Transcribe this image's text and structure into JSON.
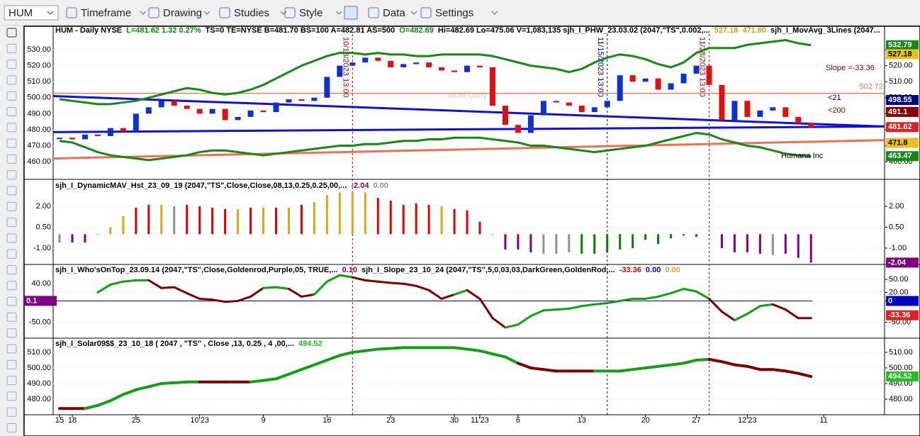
{
  "toolbar": {
    "symbol": "HUM",
    "items": [
      "Timeframe",
      "Drawing",
      "Studies",
      "Style",
      "Data",
      "Settings"
    ]
  },
  "dates": [
    "15",
    "18",
    null,
    null,
    null,
    null,
    "25",
    null,
    null,
    null,
    null,
    "10'23",
    null,
    null,
    null,
    null,
    "9",
    null,
    null,
    null,
    null,
    "16",
    null,
    null,
    null,
    null,
    "23",
    null,
    null,
    null,
    null,
    "30",
    null,
    "11'23",
    null,
    null,
    "6",
    null,
    null,
    null,
    null,
    "13",
    null,
    null,
    null,
    null,
    "20",
    null,
    null,
    null,
    "27",
    null,
    null,
    null,
    "12'23",
    null,
    null,
    null,
    null,
    null,
    "11"
  ],
  "markers": [
    {
      "index": 23,
      "label": "10/18/2023 13:00",
      "color": "#c00000"
    },
    {
      "index": 43,
      "label": "11/15/2023 13:00",
      "color": "#000080"
    },
    {
      "index": 51,
      "label": "11/28/2023 13:00",
      "color": "#c00000"
    }
  ],
  "main": {
    "header": [
      {
        "text": "HUM - Daily  NYSE",
        "color": "#000000"
      },
      {
        "text": "L=481.62  1.32  0.27%",
        "color": "#0a8a0a"
      },
      {
        "text": "TS=0  TE=NYSE  B=481.70  BS=100  A=482.81  AS=500",
        "color": "#000000"
      },
      {
        "text": "O=482.69",
        "color": "#0a8a0a"
      },
      {
        "text": "Hi=482.69  Lo=475.06  V=1,083,135  sjh_I_PHW_23.03.02 (2047,\"TS\",0.002,...",
        "color": "#000000"
      },
      {
        "text": "527.18",
        "color": "#d4a017"
      },
      {
        "text": "471.80",
        "color": "#d4a017"
      },
      {
        "text": "sjh_I_MovAvg_3Lines (2047...",
        "color": "#000000"
      }
    ],
    "watermark": "HUM Daily",
    "company": "Humana Inc",
    "slope_note": "Slope =-33.36",
    "ma_labels": [
      {
        "text": "<21",
        "color": "#000080"
      },
      {
        "text": "<200",
        "color": "#8b0000"
      }
    ],
    "ylim": [
      450.3,
      544.2
    ],
    "yticks": [
      {
        "value": 530,
        "label": "530.00"
      },
      {
        "value": 520,
        "label": "520.00"
      },
      {
        "value": 510,
        "label": "510.00"
      },
      {
        "value": 500,
        "label": "500.00"
      },
      {
        "value": 490,
        "label": "490.00"
      },
      {
        "value": 480,
        "label": "480.00"
      },
      {
        "value": 470,
        "label": "470.00"
      },
      {
        "value": 460,
        "label": "460.00"
      }
    ],
    "close": [
      475,
      474,
      477,
      476,
      481,
      479,
      490,
      494,
      498,
      495,
      493,
      490,
      493,
      486,
      488,
      492,
      491,
      497,
      499,
      498,
      500,
      513,
      520,
      522,
      525,
      523,
      519,
      521,
      522,
      519,
      517,
      516,
      520,
      519,
      495,
      483,
      478,
      489,
      498,
      497,
      495,
      491,
      494,
      498,
      514,
      510,
      512,
      505,
      509,
      515,
      520,
      508,
      486,
      498,
      488,
      492,
      494,
      488,
      484,
      481.62,
      null
    ],
    "upper": [
      499,
      498,
      497,
      496,
      496,
      497,
      498,
      500,
      502,
      504,
      506,
      505,
      503,
      502,
      503,
      505,
      508,
      512,
      516,
      520,
      523,
      526,
      528,
      528,
      527,
      528,
      527,
      527,
      526,
      526,
      527,
      527,
      527,
      527,
      526,
      524,
      522,
      520,
      519,
      518,
      516,
      518,
      522,
      525,
      527,
      526,
      524,
      521,
      519,
      522,
      528,
      531,
      531,
      531,
      533,
      534,
      535,
      536,
      534,
      532.79,
      null
    ],
    "lower": [
      473,
      472,
      469,
      466,
      464,
      463,
      462,
      461,
      462,
      463,
      464,
      466,
      467,
      467,
      466,
      465,
      464,
      465,
      466,
      467,
      468,
      469,
      470,
      470,
      471,
      471,
      472,
      473,
      473,
      474,
      474,
      475,
      475,
      475,
      474,
      473,
      472,
      470,
      470,
      469,
      468,
      467,
      466,
      467,
      468,
      469,
      470,
      472,
      474,
      476,
      478,
      477,
      474,
      472,
      470,
      469,
      467,
      465,
      464,
      463.47,
      null
    ],
    "band_color": "#138a13",
    "trendlines": [
      {
        "color": "#1010e0",
        "values": [
          501,
          482
        ]
      },
      {
        "color": "#1010e0",
        "values": [
          478.5,
          482
        ]
      },
      {
        "color": "#f07050",
        "values": [
          462,
          473.5
        ]
      }
    ],
    "level": {
      "value": 502.72,
      "color": "#f08060"
    },
    "price_boxes": [
      {
        "value": 532.79,
        "color": "#138a13"
      },
      {
        "value": 527.18,
        "color": "#e8c020"
      },
      {
        "value": 498.55,
        "color": "#000080"
      },
      {
        "value": 491.1,
        "color": "#8b0000"
      },
      {
        "value": 481.62,
        "color": "#e02020"
      },
      {
        "value": 471.8,
        "color": "#e8c020"
      },
      {
        "value": 463.47,
        "color": "#138a13"
      }
    ]
  },
  "dmav": {
    "header": [
      {
        "text": "sjh_I_DynamicMAV_Hst_23_09_19 (2047,\"TS\",Close,Close,08,13,0.25,0.25,00,...",
        "color": "#000000"
      },
      {
        "text": "-2.04",
        "color": "#800080"
      },
      {
        "text": "0.00",
        "color": "#909090"
      }
    ],
    "ylim": [
      -2.12,
      3.78
    ],
    "yticks": [
      {
        "value": 2,
        "label": "2.00"
      },
      {
        "value": 0.5,
        "label": "0.50"
      },
      {
        "value": -1,
        "label": "-1.00"
      }
    ],
    "values": [
      -0.6,
      -0.6,
      -0.6,
      0,
      0.5,
      1.3,
      1.9,
      2.1,
      2.1,
      2.0,
      2.1,
      2.0,
      1.9,
      1.8,
      1.8,
      1.9,
      1.9,
      1.9,
      1.9,
      2.1,
      2.3,
      2.8,
      3.0,
      3.0,
      3.0,
      2.6,
      2.4,
      2.1,
      2.2,
      2.1,
      2.0,
      1.8,
      1.7,
      0.9,
      -0.05,
      -1.1,
      -1.1,
      -1.3,
      -1.4,
      -1.4,
      -1.3,
      -1.4,
      -1.4,
      -1.3,
      -1.1,
      -1.0,
      -0.4,
      -0.7,
      -0.3,
      -0.1,
      -0.2,
      -0.1,
      -1.0,
      -1.3,
      -1.3,
      -1.4,
      -1.5,
      -1.4,
      -1.7,
      -2.04,
      null
    ],
    "colors": [
      "#909090",
      "#800080",
      "#800080",
      "#909090",
      "#daa520",
      "#daa520",
      "#e00000",
      "#e00000",
      "#daa520",
      "#909090",
      "#e00000",
      "#e00000",
      "#e00000",
      "#e00000",
      "#daa520",
      "#e00000",
      "#daa520",
      "#e00000",
      "#daa520",
      "#e00000",
      "#daa520",
      "#daa520",
      "#daa520",
      "#daa520",
      "#daa520",
      "#e00000",
      "#e00000",
      "#e00000",
      "#e00000",
      "#e00000",
      "#daa520",
      "#e00000",
      "#e00000",
      "#e00000",
      "#909090",
      "#800080",
      "#800080",
      "#800080",
      "#909090",
      "#909090",
      "#909090",
      "#008000",
      "#008000",
      "#008000",
      "#008000",
      "#008000",
      "#008000",
      "#008000",
      "#008000",
      "#008000",
      "#008000",
      "#909090",
      "#800080",
      "#800080",
      "#800080",
      "#800080",
      "#909090",
      "#800080",
      "#800080",
      "#800080",
      null
    ],
    "box": {
      "value": -2.04,
      "color": "#800080"
    }
  },
  "wot": {
    "header": [
      {
        "text": "sjh_I_Who'sOnTop_23.09.14 (2047,\"TS\",Close,Goldenrod,Purple,05,  TRUE,...",
        "color": "#000000"
      },
      {
        "text": "0.10",
        "color": "#800080"
      },
      {
        "text": "sjh_I_Slope_23_10_24 (2047,\"TS\",5,0,03,03,DarkGreen,GoldenRod,...",
        "color": "#000000"
      },
      {
        "text": "-33.36",
        "color": "#e00000"
      },
      {
        "text": "0.00",
        "color": "#0000e0"
      },
      {
        "text": "0.00",
        "color": "#daa520"
      }
    ],
    "ylim": [
      -85,
      80
    ],
    "yticks": [
      {
        "value": 50,
        "label": "50.00"
      },
      {
        "value": 20,
        "label": "20.00"
      },
      {
        "value": 0,
        "label": "0.00"
      },
      {
        "value": -50,
        "label": "-50.00"
      }
    ],
    "left_yticks": [
      {
        "value": 40,
        "label": "40.00"
      },
      {
        "value": 0,
        "label": "0.00"
      },
      {
        "value": -50,
        "label": "-50.00"
      }
    ],
    "values": [
      null,
      null,
      null,
      20,
      38,
      45,
      48,
      48,
      30,
      32,
      18,
      5,
      3,
      -2,
      0,
      10,
      30,
      32,
      28,
      10,
      15,
      45,
      60,
      55,
      48,
      45,
      42,
      40,
      35,
      25,
      5,
      15,
      25,
      5,
      -40,
      -62,
      -55,
      -35,
      -22,
      -20,
      -18,
      -12,
      -8,
      -5,
      0,
      5,
      5,
      10,
      18,
      28,
      22,
      5,
      -25,
      -45,
      -30,
      -12,
      -8,
      -20,
      -40,
      -40,
      null
    ],
    "colors": [
      null,
      null,
      null,
      "#12a012",
      "#12a012",
      "#12a012",
      "#12a012",
      "#800000",
      "#800000",
      "#800000",
      "#800000",
      "#800000",
      "#800000",
      "#800000",
      "#800000",
      "#800000",
      "#12a012",
      "#12a012",
      "#800000",
      "#800000",
      "#12a012",
      "#12a012",
      "#12a012",
      "#800000",
      "#800000",
      "#800000",
      "#800000",
      "#800000",
      "#800000",
      "#800000",
      "#800000",
      "#12a012",
      "#800000",
      "#800000",
      "#800000",
      "#12a012",
      "#12a012",
      "#12a012",
      "#12a012",
      "#12a012",
      "#12a012",
      "#12a012",
      "#12a012",
      "#12a012",
      "#12a012",
      "#12a012",
      "#12a012",
      "#12a012",
      "#12a012",
      "#12a012",
      "#12a012",
      "#800000",
      "#800000",
      "#12a012",
      "#12a012",
      "#12a012",
      "#800000",
      "#800000",
      "#800000",
      null,
      null
    ],
    "zero_line": {
      "value": 0,
      "color": "#0000c0"
    },
    "left_box": {
      "value": 0.1,
      "color": "#800080"
    },
    "boxes": [
      {
        "value": 0.0,
        "color": "#0000c0"
      },
      {
        "value": -33.36,
        "color": "#e02020"
      }
    ]
  },
  "solar": {
    "header": [
      {
        "text": "sjh_I_Solar09$$_23_10_18 ( 2047 , \"TS\" , Close ,13, 0.25 , 4 ,00,...",
        "color": "#000000"
      },
      {
        "text": "494.52",
        "color": "#20c020"
      }
    ],
    "ylim": [
      472.3,
      517.7
    ],
    "yticks": [
      {
        "value": 510,
        "label": "510.00"
      },
      {
        "value": 500,
        "label": "500.00"
      },
      {
        "value": 490,
        "label": "490.00"
      },
      {
        "value": 480,
        "label": "480.00"
      }
    ],
    "values": [
      474,
      474,
      474,
      476,
      479,
      483,
      486,
      488,
      490,
      490.5,
      491,
      491,
      491,
      491,
      491,
      491,
      492,
      493,
      496,
      499,
      502,
      505,
      508,
      510,
      511,
      512,
      512.5,
      513,
      513,
      513,
      513,
      513,
      512,
      511,
      509,
      507,
      503,
      500,
      499,
      498,
      498,
      498,
      498,
      498,
      498,
      499,
      500,
      501,
      502,
      503,
      505,
      505.5,
      504,
      502,
      501,
      499,
      499,
      498,
      496.5,
      494.52,
      null
    ],
    "colors": [
      "#800000",
      "#800000",
      "#12a012",
      "#12a012",
      "#12a012",
      "#12a012",
      "#12a012",
      "#12a012",
      "#12a012",
      "#12a012",
      "#12a012",
      "#800000",
      "#800000",
      "#800000",
      "#800000",
      "#12a012",
      "#12a012",
      "#12a012",
      "#12a012",
      "#12a012",
      "#12a012",
      "#12a012",
      "#12a012",
      "#12a012",
      "#12a012",
      "#12a012",
      "#12a012",
      "#12a012",
      "#12a012",
      "#12a012",
      "#12a012",
      "#12a012",
      "#12a012",
      "#12a012",
      "#12a012",
      "#12a012",
      "#800000",
      "#800000",
      "#800000",
      "#800000",
      "#800000",
      "#800000",
      "#12a012",
      "#12a012",
      "#12a012",
      "#12a012",
      "#12a012",
      "#12a012",
      "#12a012",
      "#12a012",
      "#12a012",
      "#800000",
      "#800000",
      "#800000",
      "#800000",
      "#800000",
      "#800000",
      "#800000",
      "#800000",
      null,
      null
    ],
    "box": {
      "value": 494.52,
      "color": "#20c020"
    }
  }
}
